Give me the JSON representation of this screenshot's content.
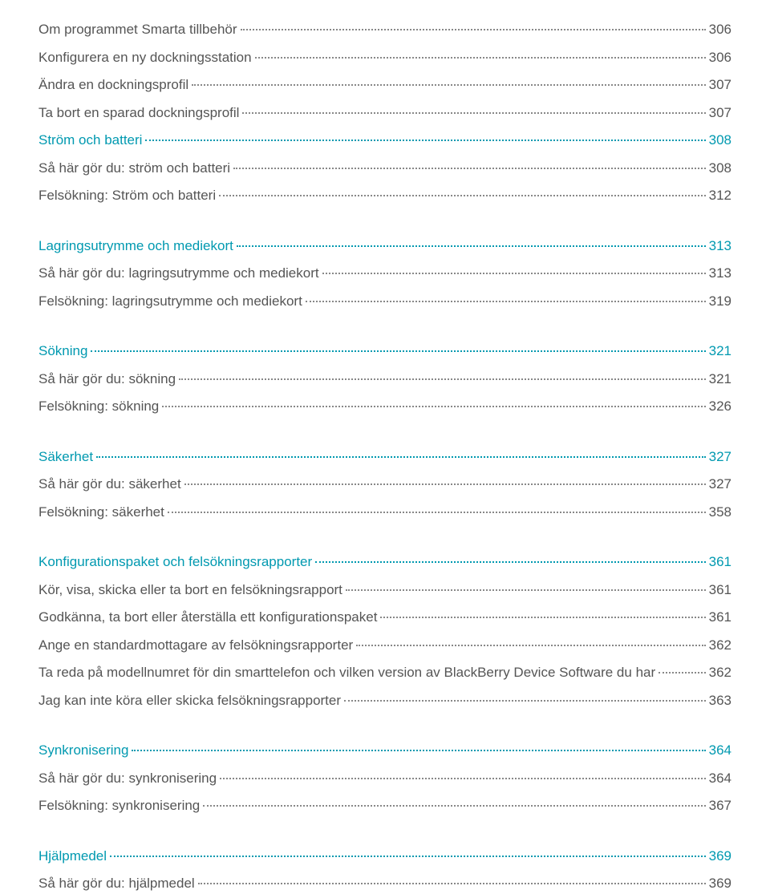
{
  "colors": {
    "heading": "#0099b0",
    "body": "#555555",
    "dots_body": "#888888",
    "background": "#ffffff"
  },
  "typography": {
    "font_size_pt": 13,
    "line_height": 1.5,
    "font_family": "sans-serif",
    "font_weight": 300
  },
  "toc": [
    {
      "type": "item",
      "style": "body",
      "label": "Om programmet Smarta tillbehör",
      "page": "306"
    },
    {
      "type": "item",
      "style": "body",
      "label": "Konfigurera en ny dockningsstation",
      "page": "306"
    },
    {
      "type": "item",
      "style": "body",
      "label": "Ändra en dockningsprofil",
      "page": "307"
    },
    {
      "type": "item",
      "style": "body",
      "label": "Ta bort en sparad dockningsprofil",
      "page": "307"
    },
    {
      "type": "item",
      "style": "heading",
      "label": "Ström och batteri",
      "page": "308"
    },
    {
      "type": "item",
      "style": "body",
      "label": "Så här gör du: ström och batteri",
      "page": "308"
    },
    {
      "type": "item",
      "style": "body",
      "label": "Felsökning: Ström och batteri",
      "page": "312"
    },
    {
      "type": "spacer"
    },
    {
      "type": "item",
      "style": "heading",
      "label": "Lagringsutrymme och mediekort",
      "page": "313"
    },
    {
      "type": "item",
      "style": "body",
      "label": "Så här gör du: lagringsutrymme och mediekort",
      "page": "313"
    },
    {
      "type": "item",
      "style": "body",
      "label": "Felsökning: lagringsutrymme och mediekort",
      "page": "319"
    },
    {
      "type": "spacer"
    },
    {
      "type": "item",
      "style": "heading",
      "label": "Sökning",
      "page": "321"
    },
    {
      "type": "item",
      "style": "body",
      "label": "Så här gör du: sökning",
      "page": "321"
    },
    {
      "type": "item",
      "style": "body",
      "label": "Felsökning: sökning",
      "page": "326"
    },
    {
      "type": "spacer"
    },
    {
      "type": "item",
      "style": "heading",
      "label": "Säkerhet",
      "page": "327"
    },
    {
      "type": "item",
      "style": "body",
      "label": "Så här gör du: säkerhet",
      "page": "327"
    },
    {
      "type": "item",
      "style": "body",
      "label": "Felsökning: säkerhet",
      "page": "358"
    },
    {
      "type": "spacer"
    },
    {
      "type": "item",
      "style": "heading",
      "label": "Konfigurationspaket och felsökningsrapporter",
      "page": "361"
    },
    {
      "type": "item",
      "style": "body",
      "label": "Kör, visa, skicka eller ta bort en felsökningsrapport",
      "page": "361"
    },
    {
      "type": "item",
      "style": "body",
      "label": "Godkänna, ta bort eller återställa ett konfigurationspaket",
      "page": "361"
    },
    {
      "type": "item",
      "style": "body",
      "label": "Ange en standardmottagare av felsökningsrapporter",
      "page": "362"
    },
    {
      "type": "item",
      "style": "body",
      "label": "Ta reda på modellnumret för din smarttelefon och vilken version av BlackBerry Device Software du har",
      "page": "362"
    },
    {
      "type": "item",
      "style": "body",
      "label": "Jag kan inte köra eller skicka felsökningsrapporter",
      "page": "363"
    },
    {
      "type": "spacer"
    },
    {
      "type": "item",
      "style": "heading",
      "label": "Synkronisering",
      "page": "364"
    },
    {
      "type": "item",
      "style": "body",
      "label": "Så här gör du: synkronisering",
      "page": "364"
    },
    {
      "type": "item",
      "style": "body",
      "label": "Felsökning: synkronisering",
      "page": "367"
    },
    {
      "type": "spacer"
    },
    {
      "type": "item",
      "style": "heading",
      "label": "Hjälpmedel",
      "page": "369"
    },
    {
      "type": "item",
      "style": "body",
      "label": "Så här gör du: hjälpmedel",
      "page": "369"
    }
  ]
}
